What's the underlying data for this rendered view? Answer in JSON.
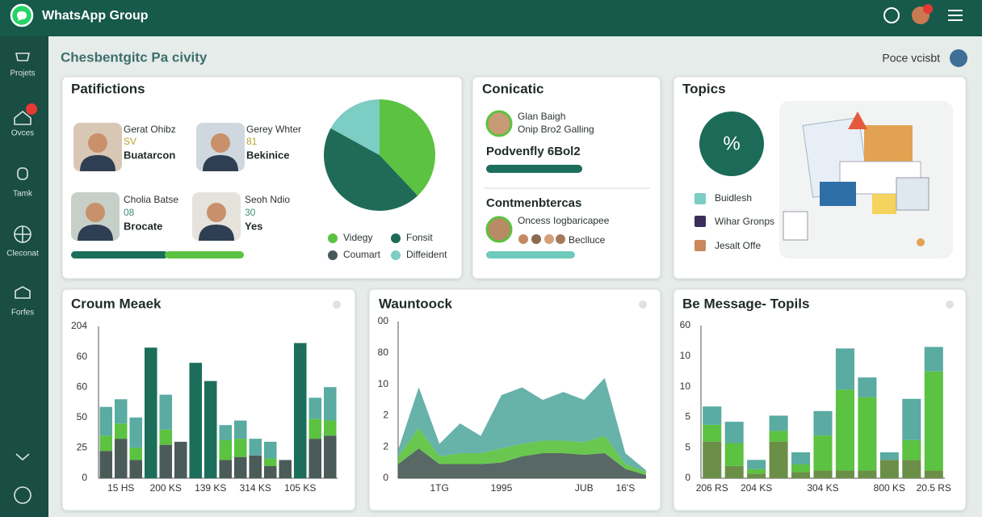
{
  "header": {
    "title": "WhatsApp Group"
  },
  "sidebar": {
    "items": [
      "Projets",
      "Ovces",
      "Tamk",
      "Cleconat",
      "Forfes"
    ]
  },
  "page": {
    "title": "Chesbentgitc Pa civity",
    "user": "Poce vcisbt"
  },
  "participants": {
    "title": "Patifictions",
    "people": [
      {
        "name": "Gerat Ohibz",
        "code": "SV",
        "role": "Buatarcon"
      },
      {
        "name": "Gerey Whter",
        "code": "81",
        "role": "Bekinice"
      },
      {
        "name": "Cholia Batse",
        "code": "08",
        "role": "Brocate"
      },
      {
        "name": "Seoh Ndio",
        "code": "30",
        "role": "Yes"
      }
    ],
    "pie": {
      "type": "pie",
      "series": [
        {
          "name": "Videgy",
          "color": "#5cc241",
          "value": 38
        },
        {
          "name": "Fonsit",
          "color": "#1f6b58",
          "value": 45
        },
        {
          "name": "Coumart",
          "color": "#46585a",
          "value": 0
        },
        {
          "name": "Diffeident",
          "color": "#7ccdc3",
          "value": 17
        }
      ]
    }
  },
  "contact": {
    "title": "Conicatic",
    "person": {
      "name": "Glan Baigh",
      "status": "Onip Bro2 Galling"
    },
    "headline": "Podvenfly 6Bol2",
    "section": "Contmenbtercas",
    "member": {
      "name": "Oncess Iogbaricapee",
      "status": "Beclluce"
    }
  },
  "topics": {
    "title": "Topics",
    "badge": "%",
    "items": [
      "Buidlesh",
      "Wihar Gronps",
      "Jesalt Offe"
    ]
  },
  "charts": [
    {
      "type": "bar",
      "title": "Croum Meaek",
      "categories": [
        null,
        "15 HS",
        null,
        null,
        "200 KS",
        null,
        null,
        "139 KS",
        null,
        null,
        "314 KS",
        null,
        null,
        "105 KS",
        null,
        null
      ],
      "yaxis_labels": [
        "0",
        "25",
        "50",
        "60",
        "60",
        "204"
      ],
      "ylim": [
        0,
        100
      ],
      "series": [
        {
          "color": "#4a5b58",
          "values": [
            18,
            26,
            12,
            0,
            22,
            24,
            0,
            0,
            12,
            14,
            15,
            8,
            12,
            0,
            26,
            28
          ]
        },
        {
          "color": "#5cc241",
          "values": [
            10,
            10,
            8,
            0,
            10,
            0,
            0,
            0,
            13,
            12,
            0,
            5,
            0,
            0,
            13,
            10
          ]
        },
        {
          "color": "#5aaba2",
          "values": [
            19,
            16,
            20,
            0,
            23,
            0,
            0,
            0,
            10,
            12,
            11,
            11,
            0,
            0,
            14,
            22
          ]
        },
        {
          "color": "#1c6e5b",
          "values": [
            0,
            0,
            0,
            86,
            0,
            0,
            76,
            64,
            0,
            0,
            0,
            0,
            0,
            89,
            0,
            0
          ]
        }
      ]
    },
    {
      "type": "area",
      "title": "Wauntoock",
      "categories": [
        null,
        null,
        "1TG",
        null,
        null,
        "1995",
        null,
        null,
        null,
        "JUB",
        null,
        "16'S",
        null
      ],
      "yaxis_labels": [
        "0",
        "2",
        "2",
        "10",
        "80",
        "00"
      ],
      "ylim": [
        0,
        100
      ],
      "series": [
        {
          "color": "#4a5b58",
          "values": [
            9,
            19,
            9,
            9,
            9,
            10,
            14,
            16,
            16,
            15,
            16,
            6,
            2
          ]
        },
        {
          "color": "#5cc241",
          "values": [
            5,
            13,
            5,
            7,
            7,
            9,
            8,
            8,
            8,
            8,
            11,
            3,
            2
          ]
        },
        {
          "color": "#5aaba2",
          "values": [
            4,
            26,
            8,
            19,
            11,
            34,
            36,
            26,
            31,
            27,
            37,
            7,
            1
          ]
        }
      ]
    },
    {
      "type": "bar",
      "title": "Be Message- Topils",
      "categories": [
        "206 RS",
        null,
        "204 KS",
        null,
        null,
        "304 KS",
        null,
        null,
        "800 KS",
        null,
        "20.5 RS"
      ],
      "yaxis_labels": [
        "0",
        "5",
        "5",
        "10",
        "10",
        "60"
      ],
      "ylim": [
        0,
        100
      ],
      "series": [
        {
          "color": "#6b8f47",
          "values": [
            24,
            8,
            3,
            24,
            4,
            5,
            5,
            5,
            12,
            12,
            5
          ]
        },
        {
          "color": "#5cc241",
          "values": [
            11,
            15,
            3,
            7,
            5,
            23,
            53,
            48,
            0,
            13,
            65
          ]
        },
        {
          "color": "#5aaba2",
          "values": [
            12,
            14,
            6,
            10,
            8,
            16,
            27,
            13,
            5,
            27,
            16
          ]
        }
      ]
    }
  ]
}
